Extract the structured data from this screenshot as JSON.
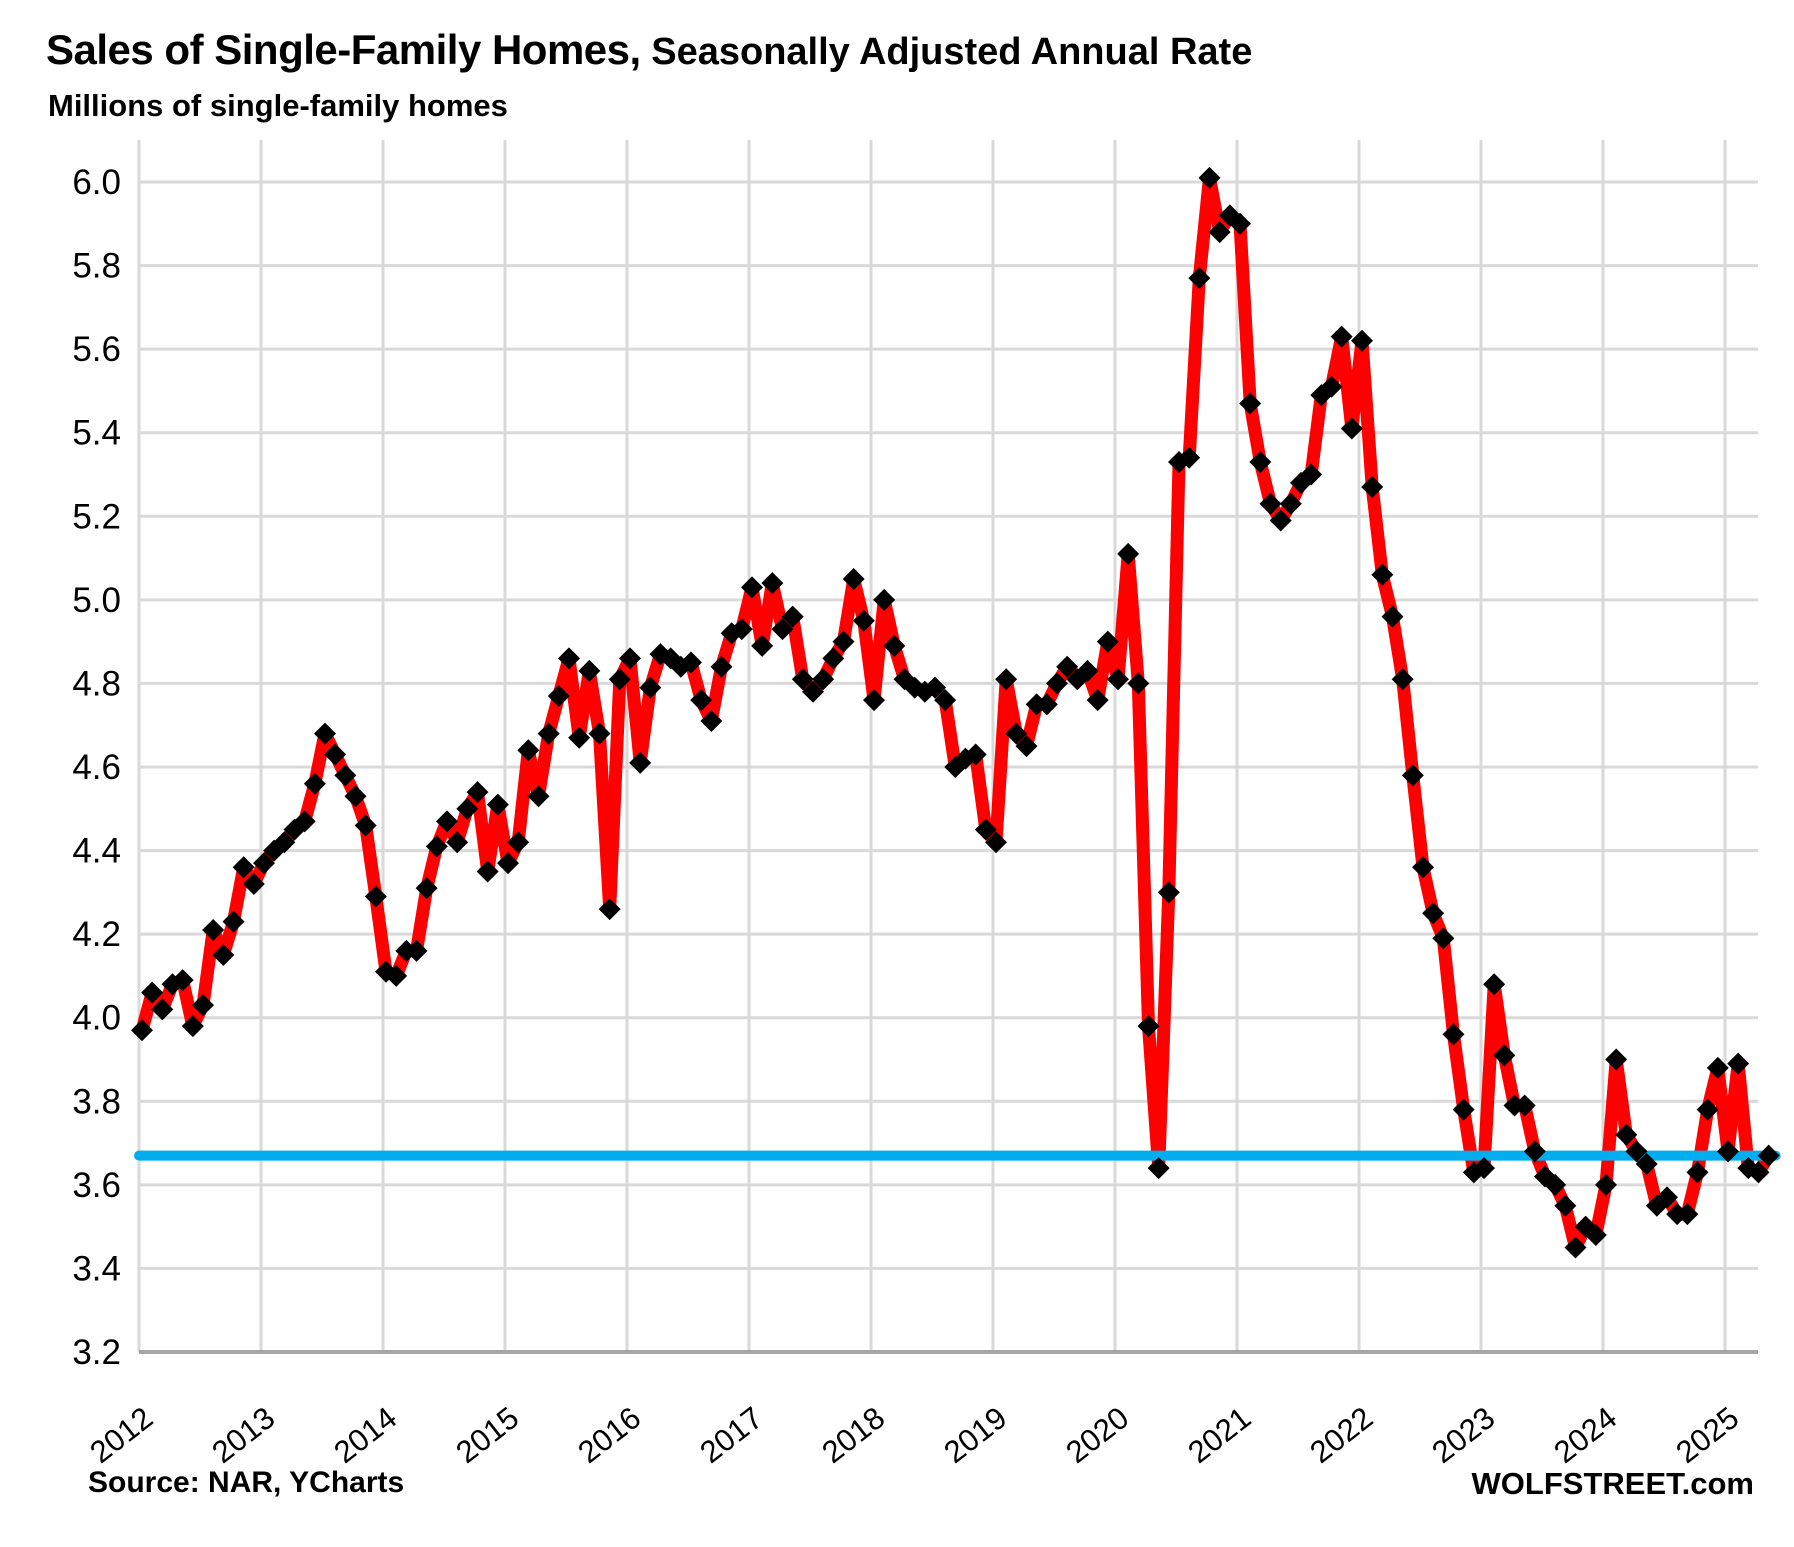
{
  "header": {
    "title_bold": "Sales of Single-Family Homes,",
    "title_rest": " Seasonally Adjusted Annual Rate",
    "subtitle": "Millions of single-family homes"
  },
  "footer": {
    "source": "Source: NAR, YCharts",
    "brand": "WOLFSTREET.com"
  },
  "colors": {
    "series_red": "#FF0000",
    "marker_black": "#000000",
    "reference_blue": "#00AEEF",
    "gridline_gray": "#D9D9D9",
    "axis_gray": "#A6A6A6",
    "text_black": "#000000",
    "background": "#FFFFFF"
  },
  "chart_data": {
    "type": "line",
    "title": "Sales of Single-Family Homes, Seasonally Adjusted Annual Rate",
    "ylabel": "Millions of single-family homes",
    "xlabel": "",
    "ylim": [
      3.2,
      6.0
    ],
    "ytick_step": 0.2,
    "xtick_labels": [
      "2012",
      "2013",
      "2014",
      "2015",
      "2016",
      "2017",
      "2018",
      "2019",
      "2020",
      "2021",
      "2022",
      "2023",
      "2024",
      "2025"
    ],
    "grid": true,
    "legend": false,
    "reference_line": {
      "value": 3.67,
      "color": "#00AEEF"
    },
    "series": [
      {
        "name": "Single-family home sales, seasonally adjusted annual rate (millions)",
        "color": "#FF0000",
        "marker": {
          "shape": "diamond",
          "color": "#000000"
        },
        "start": "2012-01",
        "frequency": "monthly",
        "values": [
          3.97,
          4.06,
          4.02,
          4.08,
          4.09,
          3.98,
          4.03,
          4.21,
          4.15,
          4.23,
          4.36,
          4.32,
          4.37,
          4.4,
          4.42,
          4.45,
          4.47,
          4.56,
          4.68,
          4.63,
          4.58,
          4.53,
          4.46,
          4.29,
          4.11,
          4.1,
          4.16,
          4.16,
          4.31,
          4.41,
          4.47,
          4.42,
          4.5,
          4.54,
          4.35,
          4.51,
          4.37,
          4.42,
          4.64,
          4.53,
          4.68,
          4.77,
          4.86,
          4.67,
          4.83,
          4.68,
          4.26,
          4.81,
          4.86,
          4.61,
          4.79,
          4.87,
          4.86,
          4.84,
          4.85,
          4.76,
          4.71,
          4.84,
          4.92,
          4.93,
          5.03,
          4.89,
          5.04,
          4.93,
          4.96,
          4.81,
          4.78,
          4.81,
          4.86,
          4.9,
          5.05,
          4.95,
          4.76,
          5.0,
          4.89,
          4.81,
          4.79,
          4.78,
          4.79,
          4.76,
          4.6,
          4.62,
          4.63,
          4.45,
          4.42,
          4.81,
          4.68,
          4.65,
          4.75,
          4.75,
          4.8,
          4.84,
          4.81,
          4.83,
          4.76,
          4.9,
          4.81,
          5.11,
          4.8,
          3.98,
          3.64,
          4.3,
          5.33,
          5.34,
          5.77,
          6.01,
          5.88,
          5.92,
          5.9,
          5.47,
          5.33,
          5.23,
          5.19,
          5.23,
          5.28,
          5.3,
          5.49,
          5.51,
          5.63,
          5.41,
          5.62,
          5.27,
          5.06,
          4.96,
          4.81,
          4.58,
          4.36,
          4.25,
          4.19,
          3.96,
          3.78,
          3.63,
          3.64,
          4.08,
          3.91,
          3.79,
          3.79,
          3.68,
          3.62,
          3.6,
          3.55,
          3.45,
          3.5,
          3.48,
          3.6,
          3.9,
          3.72,
          3.68,
          3.65,
          3.55,
          3.57,
          3.53,
          3.53,
          3.63,
          3.78,
          3.88,
          3.68,
          3.89,
          3.64,
          3.63,
          3.67
        ]
      }
    ]
  }
}
